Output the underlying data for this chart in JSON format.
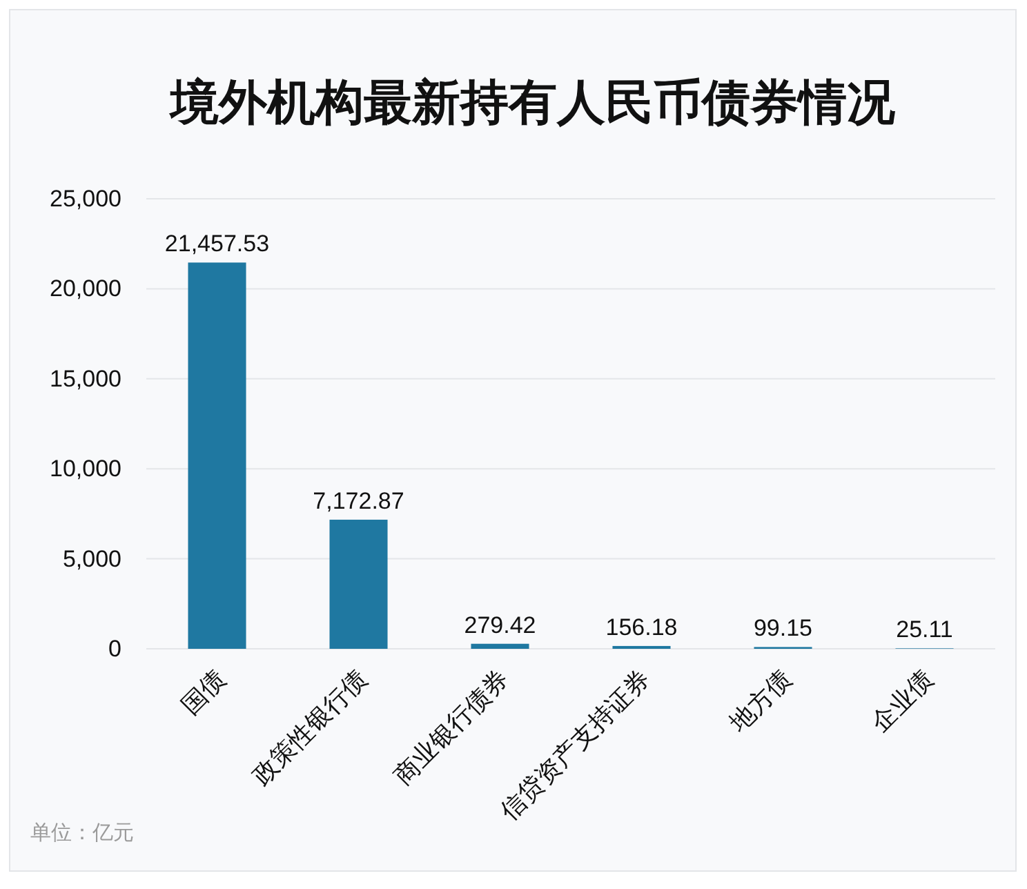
{
  "chart_data": {
    "type": "bar",
    "title": "境外机构最新持有人民币债券情况",
    "categories": [
      "国债",
      "政策性银行债",
      "商业银行债券",
      "信贷资产支持证券",
      "地方债",
      "企业债"
    ],
    "values": [
      21457.53,
      7172.87,
      279.42,
      156.18,
      99.15,
      25.11
    ],
    "value_labels": [
      "21,457.53",
      "7,172.87",
      "279.42",
      "156.18",
      "99.15",
      "25.11"
    ],
    "color": "#1f78a1",
    "ylim": [
      0,
      25000
    ],
    "yticks": [
      0,
      {
        "value": 5000,
        "label": "5,000"
      },
      {
        "value": 10000,
        "label": "10,000"
      },
      {
        "value": 15000,
        "label": "15,000"
      },
      {
        "value": 20000,
        "label": "20,000"
      },
      {
        "value": 25000,
        "label": "25,000"
      }
    ],
    "grid": "y",
    "annotations": [
      "单位：亿元"
    ]
  }
}
